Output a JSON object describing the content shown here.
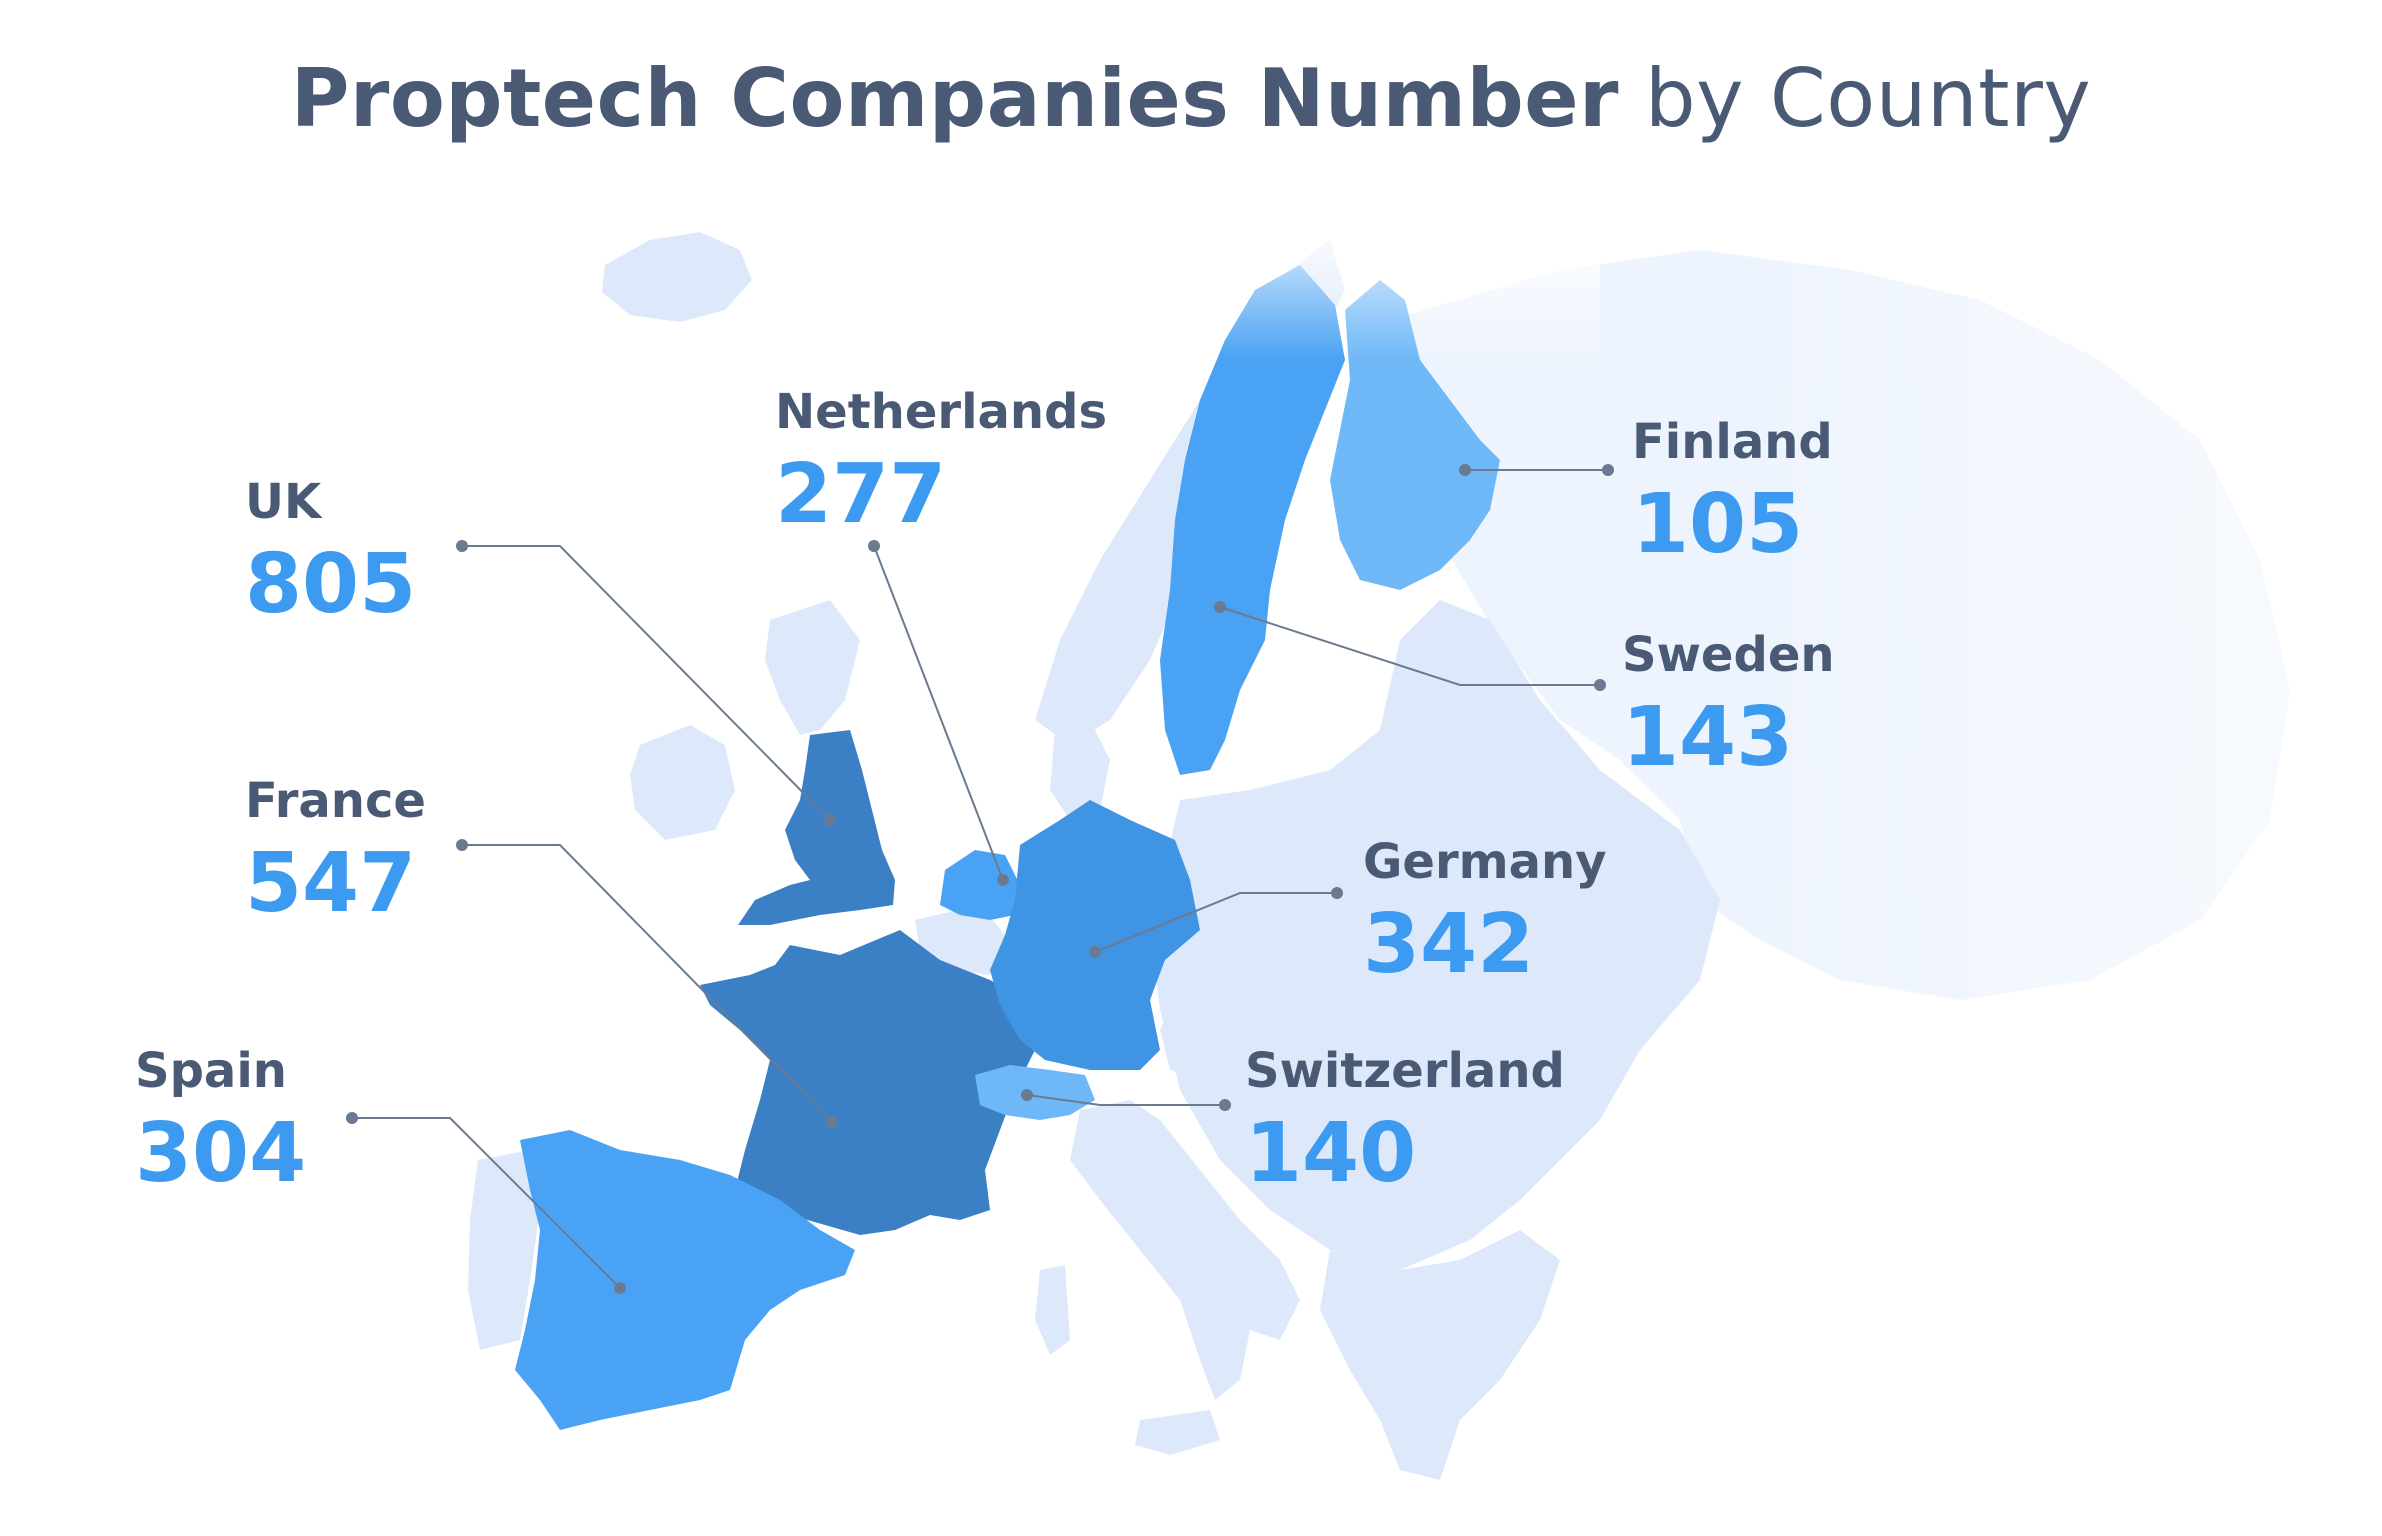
{
  "title": {
    "bold": "Proptech Companies Number",
    "light": "by Country"
  },
  "colors": {
    "background_land": "#dde9fb",
    "far_land": "#eef4fd",
    "highlight_dark": "#3b7fc5",
    "highlight_mid": "#3f95e3",
    "highlight_light": "#49a2f3",
    "highlight_pale": "#6fb8f7",
    "leader_line": "#6b7a90",
    "label_text": "#4a5a75",
    "value_text": "#3c9bf0"
  },
  "countries": [
    {
      "name": "UK",
      "value": "805"
    },
    {
      "name": "France",
      "value": "547"
    },
    {
      "name": "Spain",
      "value": "304"
    },
    {
      "name": "Netherlands",
      "value": "277"
    },
    {
      "name": "Finland",
      "value": "105"
    },
    {
      "name": "Sweden",
      "value": "143"
    },
    {
      "name": "Germany",
      "value": "342"
    },
    {
      "name": "Switzerland",
      "value": "140"
    }
  ]
}
